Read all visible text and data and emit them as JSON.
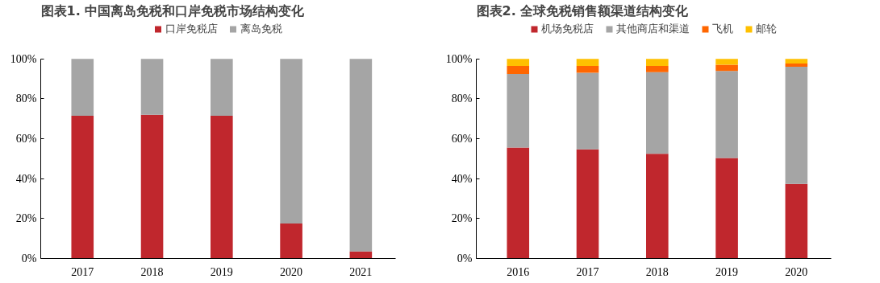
{
  "chart_data": [
    {
      "type": "bar",
      "title": "图表1.   中国离岛免税和口岸免税市场结构变化",
      "stacked": true,
      "legend": "top",
      "grid": false,
      "categories": [
        "2017",
        "2018",
        "2019",
        "2020",
        "2021"
      ],
      "series": [
        {
          "name": "口岸免税店",
          "color": "#c0272d",
          "values": [
            71.5,
            72,
            71.5,
            17.5,
            3.5
          ]
        },
        {
          "name": "离岛免税",
          "color": "#a5a5a5",
          "values": [
            28.5,
            28,
            28.5,
            82.5,
            96.5
          ]
        }
      ],
      "ylim": [
        0,
        100
      ],
      "yticks": [
        {
          "value": 0,
          "label": "0%"
        },
        {
          "value": 20,
          "label": "20%"
        },
        {
          "value": 40,
          "label": "40%"
        },
        {
          "value": 60,
          "label": "60%"
        },
        {
          "value": 80,
          "label": "80%"
        },
        {
          "value": 100,
          "label": "100%"
        }
      ]
    },
    {
      "type": "bar",
      "title": "图表2.   全球免税销售额渠道结构变化",
      "stacked": true,
      "legend": "top",
      "grid": false,
      "categories": [
        "2016",
        "2017",
        "2018",
        "2019",
        "2020"
      ],
      "series": [
        {
          "name": "机场免税店",
          "color": "#c0272d",
          "values": [
            55.6,
            54.7,
            52.4,
            50.3,
            37.3
          ]
        },
        {
          "name": "其他商店和渠道",
          "color": "#a5a5a5",
          "values": [
            36.8,
            38.3,
            40.9,
            43.6,
            58.7
          ]
        },
        {
          "name": "飞机",
          "color": "#ff6600",
          "values": [
            4.0,
            3.4,
            3.1,
            3.1,
            1.7
          ]
        },
        {
          "name": "邮轮",
          "color": "#ffc000",
          "values": [
            3.6,
            3.6,
            3.6,
            3.0,
            2.3
          ]
        }
      ],
      "ylim": [
        0,
        100
      ],
      "yticks": [
        {
          "value": 0,
          "label": "0%"
        },
        {
          "value": 20,
          "label": "20%"
        },
        {
          "value": 40,
          "label": "40%"
        },
        {
          "value": 60,
          "label": "60%"
        },
        {
          "value": 80,
          "label": "80%"
        },
        {
          "value": 100,
          "label": "100%"
        }
      ]
    }
  ]
}
